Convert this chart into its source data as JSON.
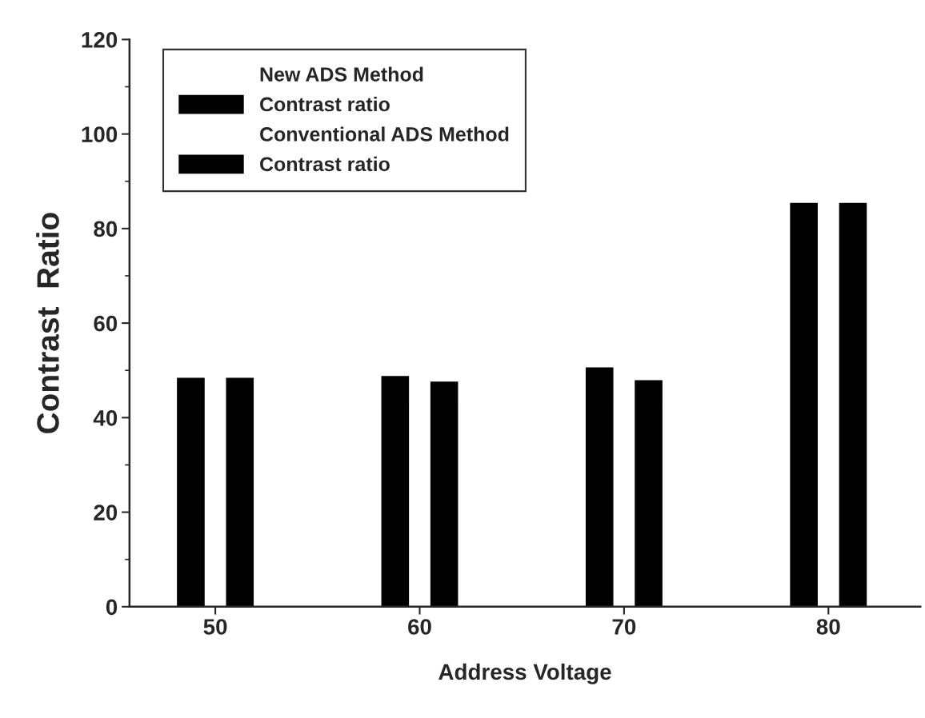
{
  "chart_data": {
    "type": "bar",
    "xlabel": "Address Voltage",
    "ylabel": "Contrast  Ratio",
    "categories": [
      "50",
      "60",
      "70",
      "80"
    ],
    "series": [
      {
        "name": "Contrast ratio",
        "color": "#000000",
        "values": [
          48.3,
          48.7,
          50.5,
          85.3
        ]
      },
      {
        "name": "Contrast ratio",
        "color": "#000000",
        "values": [
          48.3,
          47.5,
          47.8,
          85.3
        ]
      }
    ],
    "annotations": [
      "New ADS Method",
      "Conventional ADS Method"
    ],
    "ylim": [
      0,
      120
    ],
    "yticks": [
      0,
      20,
      40,
      60,
      80,
      100,
      120
    ],
    "legend": "top left",
    "grid": false
  }
}
